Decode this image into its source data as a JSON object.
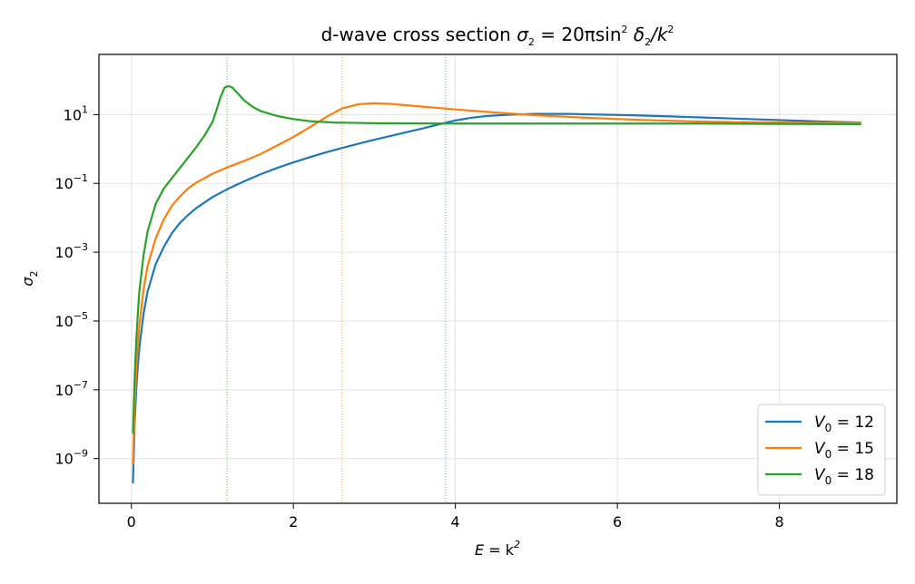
{
  "chart_data": {
    "type": "line",
    "title": "d-wave cross section σ₂ = 20π sin² δ₂ / k²",
    "title_parts": {
      "prefix": "d-wave cross section ",
      "sigma": "σ",
      "sub": "2",
      "eq": " = 20π",
      "sin": "sin",
      "sin_sup": "2",
      "delta": " δ",
      "delta_sub": "2",
      "div": "/k",
      "k_sup": "2"
    },
    "xlabel": "E = k²",
    "xlabel_parts": {
      "lhs": "E",
      "eq": " = k",
      "sup": "2"
    },
    "ylabel": "σ₂",
    "ylabel_parts": {
      "sym": "σ",
      "sub": "2"
    },
    "xlim": [
      -0.4,
      9.45
    ],
    "ylim": [
      -10.3,
      2.75
    ],
    "yscale": "log",
    "grid": true,
    "legend_position": "lower-right",
    "x_ticks": [
      {
        "value": 0,
        "label": "0"
      },
      {
        "value": 2,
        "label": "2"
      },
      {
        "value": 4,
        "label": "4"
      },
      {
        "value": 6,
        "label": "6"
      },
      {
        "value": 8,
        "label": "8"
      }
    ],
    "y_ticks": [
      {
        "exp": 1,
        "base": "10",
        "sup": "1"
      },
      {
        "exp": -1,
        "base": "10",
        "sup": "−1"
      },
      {
        "exp": -3,
        "base": "10",
        "sup": "−3"
      },
      {
        "exp": -5,
        "base": "10",
        "sup": "−5"
      },
      {
        "exp": -7,
        "base": "10",
        "sup": "−7"
      },
      {
        "exp": -9,
        "base": "10",
        "sup": "−9"
      }
    ],
    "series": [
      {
        "name": "V₀ = 12",
        "legend": {
          "sym": "V",
          "sub": "0",
          "eq": " = 12"
        },
        "color": "#1f77b4",
        "resonance_line_x": 3.88,
        "points": [
          [
            0.02,
            -9.7
          ],
          [
            0.04,
            -8.0
          ],
          [
            0.06,
            -7.0
          ],
          [
            0.08,
            -6.3
          ],
          [
            0.1,
            -5.75
          ],
          [
            0.15,
            -4.8
          ],
          [
            0.2,
            -4.15
          ],
          [
            0.3,
            -3.35
          ],
          [
            0.4,
            -2.85
          ],
          [
            0.5,
            -2.45
          ],
          [
            0.6,
            -2.15
          ],
          [
            0.7,
            -1.92
          ],
          [
            0.8,
            -1.72
          ],
          [
            1.0,
            -1.4
          ],
          [
            1.2,
            -1.15
          ],
          [
            1.4,
            -0.93
          ],
          [
            1.6,
            -0.73
          ],
          [
            1.8,
            -0.55
          ],
          [
            2.0,
            -0.39
          ],
          [
            2.2,
            -0.24
          ],
          [
            2.4,
            -0.1
          ],
          [
            2.6,
            0.03
          ],
          [
            2.8,
            0.15
          ],
          [
            3.0,
            0.27
          ],
          [
            3.2,
            0.38
          ],
          [
            3.4,
            0.49
          ],
          [
            3.6,
            0.6
          ],
          [
            3.8,
            0.72
          ],
          [
            4.0,
            0.83
          ],
          [
            4.2,
            0.91
          ],
          [
            4.4,
            0.96
          ],
          [
            4.6,
            0.99
          ],
          [
            4.8,
            1.01
          ],
          [
            5.0,
            1.02
          ],
          [
            5.4,
            1.02
          ],
          [
            5.8,
            1.0
          ],
          [
            6.2,
            0.98
          ],
          [
            6.6,
            0.95
          ],
          [
            7.0,
            0.92
          ],
          [
            7.5,
            0.88
          ],
          [
            8.0,
            0.84
          ],
          [
            8.5,
            0.8
          ],
          [
            9.0,
            0.77
          ]
        ]
      },
      {
        "name": "V₀ = 15",
        "legend": {
          "sym": "V",
          "sub": "0",
          "eq": " = 15"
        },
        "color": "#ff7f0e",
        "resonance_line_x": 2.6,
        "points": [
          [
            0.02,
            -9.15
          ],
          [
            0.04,
            -7.55
          ],
          [
            0.06,
            -6.45
          ],
          [
            0.08,
            -5.7
          ],
          [
            0.1,
            -5.1
          ],
          [
            0.15,
            -4.1
          ],
          [
            0.2,
            -3.4
          ],
          [
            0.3,
            -2.6
          ],
          [
            0.4,
            -2.05
          ],
          [
            0.5,
            -1.65
          ],
          [
            0.6,
            -1.38
          ],
          [
            0.7,
            -1.15
          ],
          [
            0.8,
            -0.98
          ],
          [
            1.0,
            -0.72
          ],
          [
            1.2,
            -0.52
          ],
          [
            1.4,
            -0.34
          ],
          [
            1.6,
            -0.14
          ],
          [
            1.8,
            0.1
          ],
          [
            2.0,
            0.35
          ],
          [
            2.2,
            0.63
          ],
          [
            2.4,
            0.92
          ],
          [
            2.6,
            1.18
          ],
          [
            2.8,
            1.3
          ],
          [
            3.0,
            1.33
          ],
          [
            3.2,
            1.31
          ],
          [
            3.5,
            1.25
          ],
          [
            4.0,
            1.15
          ],
          [
            4.5,
            1.06
          ],
          [
            5.0,
            0.98
          ],
          [
            5.5,
            0.92
          ],
          [
            6.0,
            0.87
          ],
          [
            6.5,
            0.83
          ],
          [
            7.0,
            0.8
          ],
          [
            7.5,
            0.78
          ],
          [
            8.0,
            0.77
          ],
          [
            8.5,
            0.76
          ],
          [
            9.0,
            0.76
          ]
        ]
      },
      {
        "name": "V₀ = 18",
        "legend": {
          "sym": "V",
          "sub": "0",
          "eq": " = 18"
        },
        "color": "#2ca02c",
        "resonance_line_x": 1.18,
        "points": [
          [
            0.02,
            -8.25
          ],
          [
            0.04,
            -6.7
          ],
          [
            0.06,
            -5.6
          ],
          [
            0.08,
            -4.8
          ],
          [
            0.1,
            -4.1
          ],
          [
            0.15,
            -3.1
          ],
          [
            0.2,
            -2.4
          ],
          [
            0.3,
            -1.6
          ],
          [
            0.4,
            -1.15
          ],
          [
            0.5,
            -0.85
          ],
          [
            0.6,
            -0.55
          ],
          [
            0.7,
            -0.25
          ],
          [
            0.8,
            0.05
          ],
          [
            0.9,
            0.38
          ],
          [
            1.0,
            0.78
          ],
          [
            1.05,
            1.12
          ],
          [
            1.1,
            1.5
          ],
          [
            1.15,
            1.78
          ],
          [
            1.2,
            1.83
          ],
          [
            1.25,
            1.78
          ],
          [
            1.3,
            1.65
          ],
          [
            1.4,
            1.4
          ],
          [
            1.5,
            1.22
          ],
          [
            1.6,
            1.1
          ],
          [
            1.8,
            0.96
          ],
          [
            2.0,
            0.87
          ],
          [
            2.2,
            0.81
          ],
          [
            2.5,
            0.77
          ],
          [
            3.0,
            0.75
          ],
          [
            4.0,
            0.74
          ],
          [
            5.0,
            0.74
          ],
          [
            6.0,
            0.74
          ],
          [
            7.0,
            0.74
          ],
          [
            8.0,
            0.73
          ],
          [
            9.0,
            0.72
          ]
        ]
      }
    ]
  }
}
